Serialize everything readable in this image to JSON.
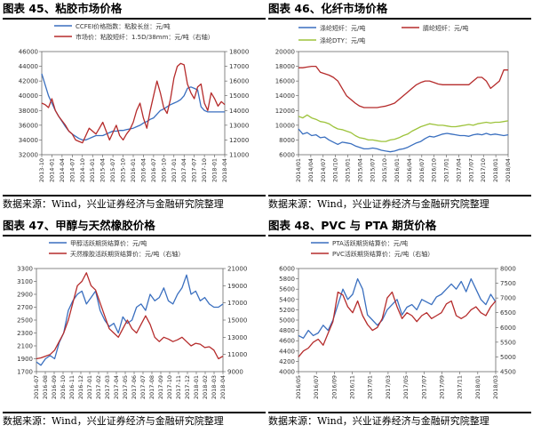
{
  "source_text": "数据来源：Wind，兴业证券经济与金融研究院整理",
  "colors": {
    "blue": "#3a6fbf",
    "red": "#b52b2b",
    "green": "#9dc33b",
    "axis": "#555555",
    "text": "#333333"
  },
  "charts": [
    {
      "id": "c45",
      "title": "图表 45、粘胶市场价格",
      "type": "line",
      "legend": [
        "CCFEI价格指数：粘胶长丝：元/吨",
        "市场价：粘胶短纤：1.5D/38mm：元/吨（右轴）"
      ],
      "left_ticks": [
        "46000",
        "44000",
        "42000",
        "40000",
        "38000",
        "36000",
        "34000",
        "32000"
      ],
      "right_ticks": [
        "18000",
        "17000",
        "16000",
        "15000",
        "14000",
        "13000",
        "12000",
        "11000"
      ],
      "x_ticks": [
        "2013-10",
        "2014-01",
        "2014-04",
        "2014-07",
        "2014-10",
        "2015-01",
        "2015-04",
        "2015-07",
        "2015-10",
        "2016-01",
        "2016-04",
        "2016-07",
        "2016-10",
        "2017-01",
        "2017-04",
        "2017-07",
        "2017-10",
        "2018-01",
        "2018-04"
      ],
      "chart_data": {
        "type": "line",
        "x_range": [
          "2013-10",
          "2018-04"
        ],
        "ylim_left": [
          32000,
          46000
        ],
        "ylim_right": [
          11000,
          18000
        ],
        "series": [
          {
            "name": "CCFEI价格指数：粘胶长丝：元/吨",
            "axis": "left",
            "color": "#3a6fbf",
            "values": [
              43000,
              41500,
              40000,
              39000,
              38000,
              37200,
              36500,
              35800,
              35200,
              34800,
              34500,
              34200,
              34000,
              34000,
              34200,
              34400,
              34600,
              34600,
              34600,
              34800,
              35000,
              35200,
              35200,
              35300,
              35300,
              35400,
              35500,
              35600,
              35800,
              36000,
              36300,
              36500,
              36800,
              37000,
              37500,
              38000,
              38200,
              38500,
              38800,
              39000,
              39200,
              39500,
              40000,
              41000,
              41200,
              41000,
              40800,
              38500,
              38000,
              37800,
              37800,
              37800,
              37800,
              37800,
              37800
            ]
          },
          {
            "name": "市场价：粘胶短纤：1.5D/38mm：元/吨（右轴）",
            "axis": "right",
            "color": "#b52b2b",
            "values": [
              14500,
              14400,
              14200,
              14800,
              14000,
              13600,
              13300,
              13000,
              12600,
              12400,
              12000,
              11900,
              11800,
              12300,
              12800,
              12600,
              12400,
              12800,
              13200,
              12600,
              12000,
              12500,
              13000,
              12300,
              12000,
              12400,
              12700,
              13200,
              14000,
              14500,
              13500,
              12800,
              14000,
              15000,
              16000,
              15200,
              14200,
              13800,
              14800,
              16200,
              17000,
              17200,
              17100,
              15800,
              15200,
              14800,
              15600,
              15800,
              14500,
              14000,
              15200,
              14800,
              14300,
              14600,
              14400
            ]
          }
        ]
      }
    },
    {
      "id": "c46",
      "title": "图表 46、化纤市场价格",
      "type": "line",
      "legend": [
        "涤纶短纤：元/吨",
        "腈纶短纤：元/吨",
        "涤纶DTY：元/吨"
      ],
      "left_ticks": [
        "20000",
        "18000",
        "16000",
        "14000",
        "12000",
        "10000",
        "8000",
        "6000"
      ],
      "x_ticks": [
        "2014/01",
        "2014/04",
        "2014/07",
        "2014/10",
        "2015/01",
        "2015/04",
        "2015/07",
        "2015/10",
        "2016/01",
        "2016/04",
        "2016/07",
        "2016/10",
        "2017/01",
        "2017/04",
        "2017/07",
        "2017/10",
        "2018/01",
        "2018/04"
      ],
      "chart_data": {
        "type": "line",
        "x_range": [
          "2014/01",
          "2018/04"
        ],
        "ylim": [
          6000,
          20000
        ],
        "series": [
          {
            "name": "涤纶短纤：元/吨",
            "color": "#3a6fbf",
            "values": [
              9500,
              8800,
              9000,
              8600,
              8700,
              8300,
              8400,
              8000,
              7700,
              7400,
              7700,
              7600,
              7500,
              7200,
              7000,
              6800,
              6800,
              6900,
              6800,
              6600,
              6500,
              6400,
              6500,
              6700,
              6800,
              7000,
              7300,
              7600,
              7800,
              8200,
              8500,
              8400,
              8600,
              8800,
              8900,
              8800,
              8700,
              8600,
              8600,
              8500,
              8700,
              8800,
              8700,
              8900,
              8700,
              8800,
              8700,
              8600,
              8700
            ]
          },
          {
            "name": "腈纶短纤：元/吨",
            "color": "#b52b2b",
            "values": [
              17800,
              17800,
              17900,
              18000,
              18000,
              17200,
              17000,
              16800,
              16500,
              16000,
              15000,
              14000,
              13500,
              13000,
              12600,
              12400,
              12400,
              12400,
              12400,
              12500,
              12600,
              12800,
              13000,
              13500,
              14000,
              14500,
              15000,
              15500,
              15800,
              16000,
              16000,
              15800,
              15600,
              15500,
              15500,
              15500,
              15500,
              15500,
              15500,
              15500,
              16000,
              16500,
              16500,
              16000,
              15000,
              15500,
              16000,
              17500,
              17500
            ]
          },
          {
            "name": "涤纶DTY：元/吨",
            "color": "#9dc33b",
            "values": [
              11200,
              11000,
              11400,
              11000,
              10800,
              10500,
              10400,
              10200,
              9800,
              9500,
              9400,
              9200,
              9000,
              8600,
              8300,
              8200,
              8000,
              8000,
              7900,
              7800,
              7800,
              8000,
              8100,
              8300,
              8600,
              8800,
              9200,
              9500,
              9800,
              10000,
              10200,
              10100,
              10000,
              10000,
              9900,
              9800,
              9800,
              9900,
              10000,
              10100,
              10000,
              10200,
              10300,
              10400,
              10300,
              10400,
              10400,
              10500,
              10600
            ]
          }
        ]
      }
    },
    {
      "id": "c47",
      "title": "图表 47、甲醇与天然橡胶价格",
      "type": "line",
      "legend": [
        "甲醇活跃期货结算价：元/吨",
        "天然橡胶活跃期货结算价：元/吨（右轴）"
      ],
      "left_ticks": [
        "3300",
        "3100",
        "2900",
        "2700",
        "2500",
        "2300",
        "2100",
        "1900",
        "1700"
      ],
      "right_ticks": [
        "21000",
        "19000",
        "17000",
        "15000",
        "13000",
        "11000",
        "9000"
      ],
      "x_ticks": [
        "2016-07",
        "2016-08",
        "2016-09",
        "2016-10",
        "2016-11",
        "2016-12",
        "2017-01",
        "2017-02",
        "2017-03",
        "2017-04",
        "2017-05",
        "2017-06",
        "2017-07",
        "2017-08",
        "2017-09",
        "2017-10",
        "2017-11",
        "2017-12",
        "2018-01",
        "2018-02",
        "2018-03",
        "2018-04"
      ],
      "chart_data": {
        "type": "line",
        "x_range": [
          "2016-07",
          "2018-04"
        ],
        "ylim_left": [
          1700,
          3300
        ],
        "ylim_right": [
          9000,
          21000
        ],
        "series": [
          {
            "name": "甲醇活跃期货结算价：元/吨",
            "axis": "left",
            "color": "#3a6fbf",
            "values": [
              1850,
              1800,
              1900,
              1950,
              1900,
              2150,
              2300,
              2650,
              2800,
              2900,
              2950,
              2750,
              2850,
              2950,
              2650,
              2500,
              2400,
              2450,
              2300,
              2550,
              2450,
              2500,
              2700,
              2750,
              2650,
              2900,
              2800,
              2850,
              3000,
              2800,
              2750,
              2900,
              3000,
              3200,
              2900,
              2950,
              2800,
              2850,
              2750,
              2700,
              2700,
              2750
            ]
          },
          {
            "name": "天然橡胶活跃期货结算价：元/吨（右轴）",
            "axis": "right",
            "color": "#b52b2b",
            "values": [
              10500,
              10600,
              10800,
              11000,
              11500,
              12500,
              13500,
              15000,
              17000,
              19000,
              19500,
              20500,
              19000,
              18500,
              17000,
              15500,
              14000,
              13500,
              13000,
              14000,
              15000,
              14000,
              13500,
              14500,
              15500,
              14500,
              13000,
              12500,
              13000,
              12800,
              12500,
              12700,
              13000,
              12500,
              12000,
              12300,
              12200,
              11800,
              11900,
              11500,
              10500,
              10800
            ]
          }
        ]
      }
    },
    {
      "id": "c48",
      "title": "图表 48、PVC 与 PTA 期货价格",
      "type": "line",
      "legend": [
        "PTA活跃期货结算价：元/吨",
        "PVC活跃期货结算价：元/吨（右轴）"
      ],
      "left_ticks": [
        "6000",
        "5800",
        "5600",
        "5400",
        "5200",
        "5000",
        "4800",
        "4600",
        "4400",
        "4200",
        "4000"
      ],
      "right_ticks": [
        "8000",
        "7500",
        "7000",
        "6500",
        "6000",
        "5500",
        "5000",
        "4500"
      ],
      "x_ticks": [
        "2016/05",
        "2016/07",
        "2016/09",
        "2016/11",
        "2017/01",
        "2017/03",
        "2017/05",
        "2017/07",
        "2017/09",
        "2017/11",
        "2018/01",
        "2018/03"
      ],
      "chart_data": {
        "type": "line",
        "x_range": [
          "2016/05",
          "2018/04"
        ],
        "ylim_left": [
          4000,
          6000
        ],
        "ylim_right": [
          4500,
          8000
        ],
        "series": [
          {
            "name": "PTA活跃期货结算价：元/吨",
            "axis": "left",
            "color": "#3a6fbf",
            "values": [
              4700,
              4650,
              4800,
              4700,
              4750,
              4900,
              4800,
              5000,
              5300,
              5600,
              5400,
              5500,
              5800,
              5600,
              5100,
              5000,
              4900,
              5000,
              5200,
              5300,
              5400,
              5100,
              5250,
              5300,
              5200,
              5400,
              5350,
              5300,
              5450,
              5500,
              5600,
              5700,
              5600,
              5750,
              5550,
              5800,
              5600,
              5400,
              5300,
              5500,
              5350
            ]
          },
          {
            "name": "PVC活跃期货结算价：元/吨（右轴）",
            "axis": "right",
            "color": "#b52b2b",
            "values": [
              5000,
              5200,
              5300,
              5500,
              5600,
              5400,
              5800,
              6200,
              7200,
              7100,
              6700,
              6500,
              6900,
              6400,
              6100,
              5900,
              6000,
              6300,
              7000,
              7200,
              6700,
              6300,
              6500,
              6400,
              6200,
              6400,
              6500,
              6300,
              6400,
              6500,
              6800,
              6900,
              6400,
              6300,
              6400,
              6600,
              6700,
              6500,
              6400,
              6700,
              6900
            ]
          }
        ]
      }
    }
  ]
}
